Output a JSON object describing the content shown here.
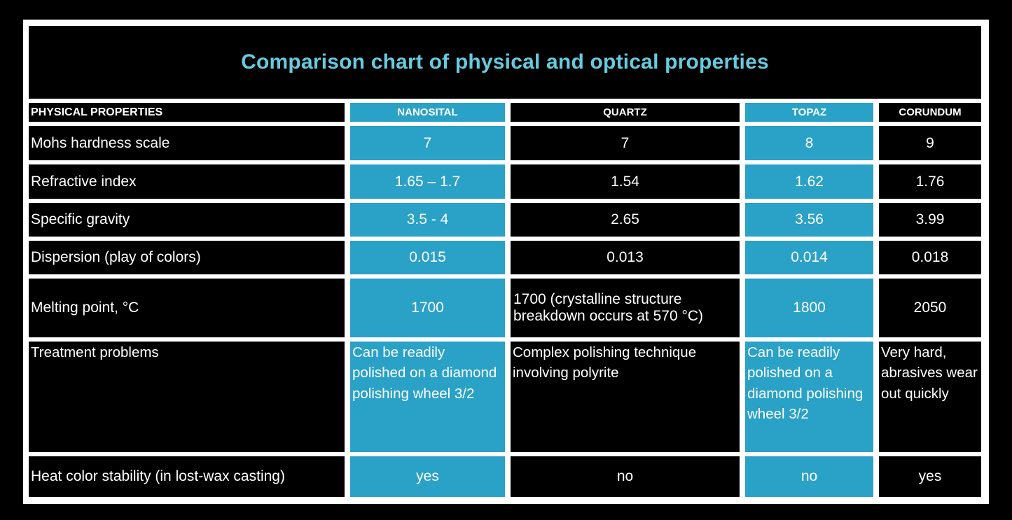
{
  "colors": {
    "accent": "#2aa1c6",
    "title": "#67cadf",
    "panel": "#ffffff",
    "cell": "#000000",
    "text": "#ffffff"
  },
  "chart_data": {
    "type": "table",
    "title": "Comparison chart of physical and optical properties",
    "columns": [
      "PHYSICAL PROPERTIES",
      "NANOSITAL",
      "QUARTZ",
      "TOPAZ",
      "CORUNDUM"
    ],
    "highlighted_columns": [
      "NANOSITAL",
      "TOPAZ"
    ],
    "rows": [
      {
        "property": "Mohs hardness scale",
        "values": [
          "7",
          "7",
          "8",
          "9"
        ]
      },
      {
        "property": "Refractive index",
        "values": [
          "1.65 – 1.7",
          "1.54",
          "1.62",
          "1.76"
        ]
      },
      {
        "property": "Specific gravity",
        "values": [
          "3.5 - 4",
          "2.65",
          "3.56",
          "3.99"
        ]
      },
      {
        "property": "Dispersion (play of colors)",
        "values": [
          "0.015",
          "0.013",
          "0.014",
          "0.018"
        ]
      },
      {
        "property": "Melting point, °C",
        "values": [
          "1700",
          "1700 (crystalline structure breakdown occurs at 570 °C)",
          "1800",
          "2050"
        ]
      },
      {
        "property": "Treatment problems",
        "values": [
          "Can be readily polished on a diamond polishing wheel 3/2",
          "Complex polishing technique involving polyrite",
          "Can be readily polished on a diamond polishing wheel 3/2",
          "Very hard, abrasives wear out quickly"
        ]
      },
      {
        "property": "Heat color stability (in lost-wax casting)",
        "values": [
          "yes",
          "no",
          "no",
          "yes"
        ]
      }
    ]
  }
}
